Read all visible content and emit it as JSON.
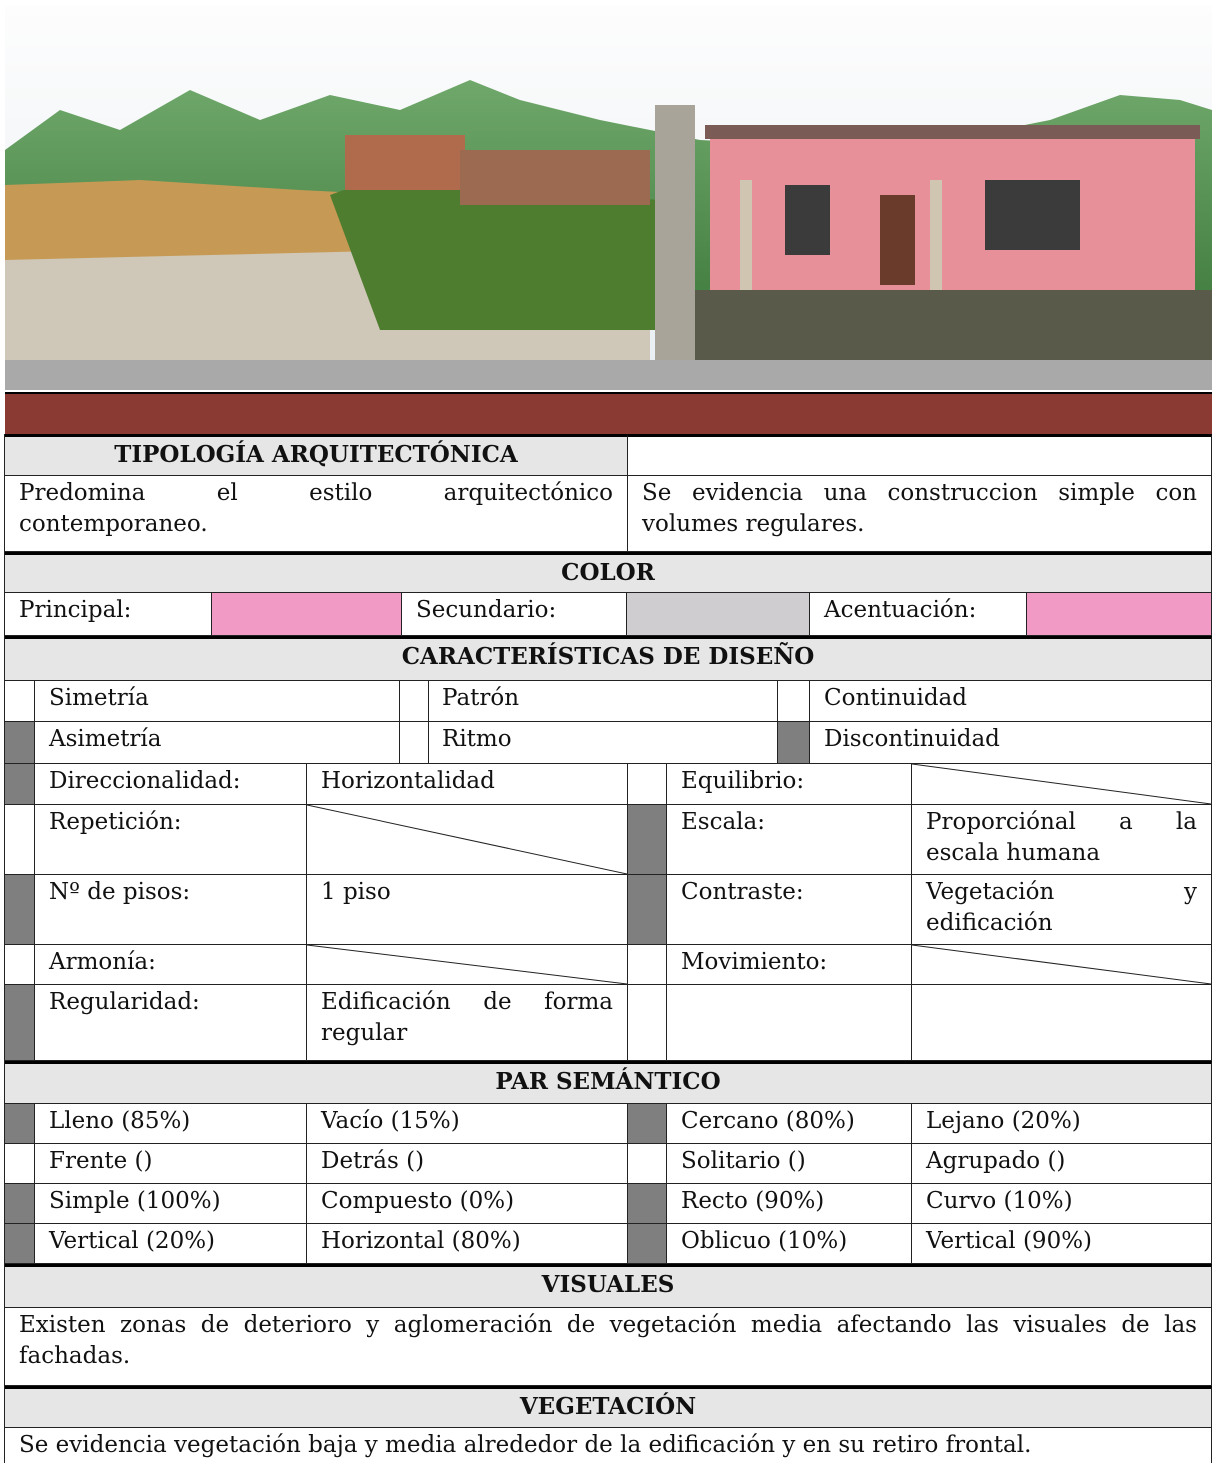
{
  "typology": {
    "title": "TIPOLOGÍA ARQUITECTÓNICA",
    "left": "Predomina el estilo arquitectónico contemporaneo.",
    "right": "Se evidencia una construccion simple con volumes regulares."
  },
  "color": {
    "title": "COLOR",
    "items": [
      {
        "label": "Principal:",
        "swatch": "#f29ac6"
      },
      {
        "label": "Secundario:",
        "swatch": "#cfcdcf"
      },
      {
        "label": "Acentuación:",
        "swatch": "#f29ac6"
      }
    ]
  },
  "design": {
    "title": "CARACTERÍSTICAS DE DISEÑO",
    "options": [
      [
        {
          "label": "Simetría",
          "marked": false
        },
        {
          "label": "Patrón",
          "marked": false
        },
        {
          "label": "Continuidad",
          "marked": false
        }
      ],
      [
        {
          "label": "Asimetría",
          "marked": true
        },
        {
          "label": "Ritmo",
          "marked": false
        },
        {
          "label": "Discontinuidad",
          "marked": true
        }
      ]
    ],
    "attributes": [
      [
        {
          "label": "Direccionalidad:",
          "value": "Horizontalidad",
          "marked": true
        },
        {
          "label": "Equilibrio:",
          "value": null,
          "marked": false
        }
      ],
      [
        {
          "label": "Repetición:",
          "value": null,
          "marked": false
        },
        {
          "label": "Escala:",
          "value": "Proporciónal a la escala humana",
          "marked": true
        }
      ],
      [
        {
          "label": "Nº de pisos:",
          "value": "1 piso",
          "marked": true
        },
        {
          "label": "Contraste:",
          "value": "Vegetación y edificación",
          "marked": true
        }
      ],
      [
        {
          "label": "Armonía:",
          "value": null,
          "marked": false
        },
        {
          "label": "Movimiento:",
          "value": null,
          "marked": false
        }
      ],
      [
        {
          "label": "Regularidad:",
          "value": "Edificación de forma regular",
          "marked": true
        },
        null
      ]
    ]
  },
  "semantic": {
    "title": "PAR SEMÁNTICO",
    "rows": [
      [
        {
          "left": "Lleno (85%)",
          "right": "Vacío (15%)",
          "marked": true
        },
        {
          "left": "Cercano (80%)",
          "right": "Lejano (20%)",
          "marked": true
        }
      ],
      [
        {
          "left": "Frente ()",
          "right": "Detrás ()",
          "marked": false
        },
        {
          "left": "Solitario ()",
          "right": "Agrupado ()",
          "marked": false
        }
      ],
      [
        {
          "left": "Simple (100%)",
          "right": "Compuesto (0%)",
          "marked": true
        },
        {
          "left": "Recto (90%)",
          "right": "Curvo (10%)",
          "marked": true
        }
      ],
      [
        {
          "left": "Vertical (20%)",
          "right": "Horizontal (80%)",
          "marked": true
        },
        {
          "left": "Oblicuo (10%)",
          "right": "Vertical (90%)",
          "marked": true
        }
      ]
    ]
  },
  "visuals": {
    "title": "VISUALES",
    "text": "Existen zonas de deterioro y aglomeración de vegetación media afectando las visuales de las fachadas."
  },
  "vegetation": {
    "title": "VEGETACIÓN",
    "text": "Se evidencia vegetación baja y media alrededor de la edificación y en su retiro frontal."
  }
}
